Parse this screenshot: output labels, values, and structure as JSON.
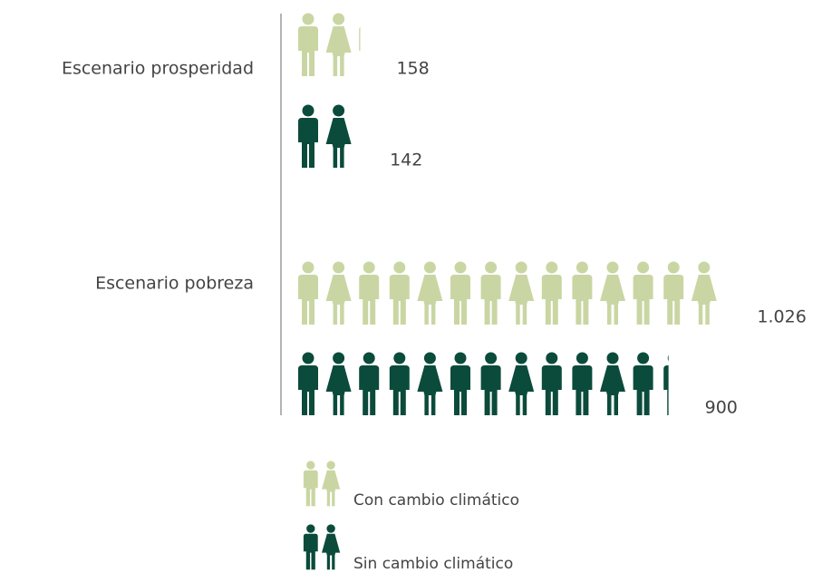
{
  "chart_data": {
    "type": "pictogram",
    "categories": [
      "Escenario prosperidad",
      "Escenario pobreza"
    ],
    "series": [
      {
        "name": "Con cambio climático",
        "color": "#c9d6a3",
        "values": [
          158,
          1026
        ],
        "value_labels": [
          "158",
          "1.026"
        ]
      },
      {
        "name": "Sin cambio climático",
        "color": "#0b4b3b",
        "values": [
          142,
          900
        ],
        "value_labels": [
          "142",
          "900"
        ]
      }
    ]
  }
}
